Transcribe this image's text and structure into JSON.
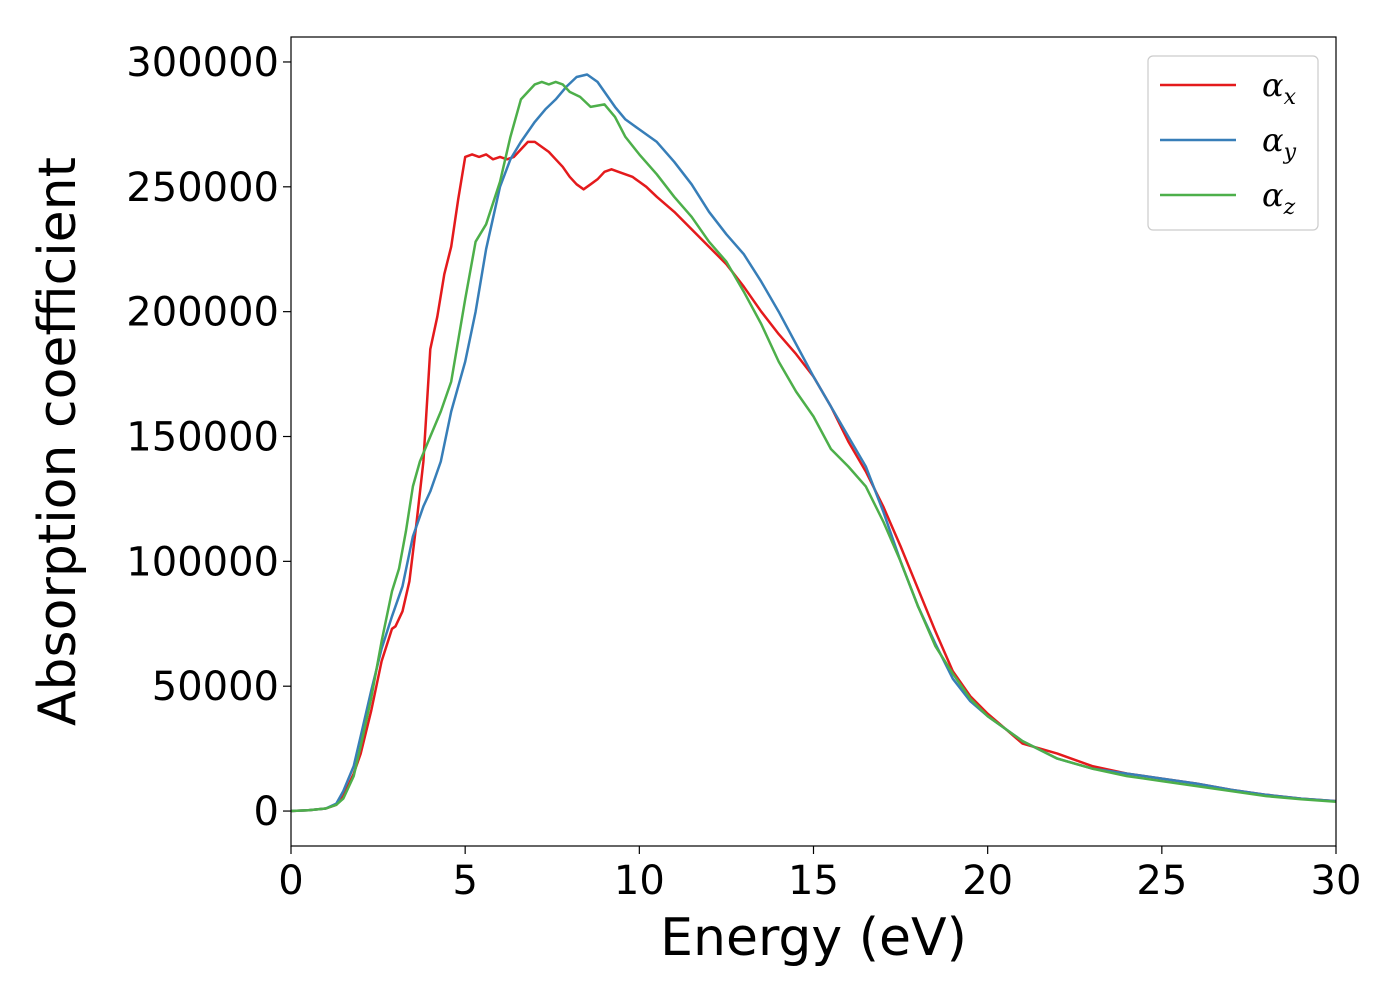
{
  "chart_data": {
    "type": "line",
    "xlabel": "Energy (eV)",
    "ylabel": "Absorption coefficient",
    "xlim": [
      0,
      30
    ],
    "ylim": [
      -14000,
      310000
    ],
    "xticks": [
      0,
      5,
      10,
      15,
      20,
      25,
      30
    ],
    "yticks": [
      0,
      50000,
      100000,
      150000,
      200000,
      250000,
      300000
    ],
    "grid": false,
    "legend_position": "top-right",
    "series": [
      {
        "name": "αx",
        "symbol": "α",
        "subscript": "x",
        "color": "#e41a1c",
        "x": [
          0,
          0.5,
          1.0,
          1.3,
          1.5,
          1.8,
          2.0,
          2.3,
          2.6,
          2.9,
          3.0,
          3.2,
          3.4,
          3.6,
          3.8,
          4.0,
          4.2,
          4.4,
          4.6,
          4.8,
          5.0,
          5.2,
          5.4,
          5.6,
          5.8,
          6.0,
          6.2,
          6.4,
          6.6,
          6.8,
          7.0,
          7.2,
          7.4,
          7.6,
          7.8,
          8.0,
          8.2,
          8.4,
          8.6,
          8.8,
          9.0,
          9.2,
          9.4,
          9.6,
          9.8,
          10.0,
          10.2,
          10.5,
          11.0,
          11.5,
          12.0,
          12.5,
          13.0,
          13.5,
          14.0,
          14.5,
          15.0,
          15.5,
          16.0,
          16.5,
          17.0,
          17.5,
          18.0,
          18.5,
          19.0,
          19.5,
          20.0,
          20.5,
          21.0,
          22.0,
          23.0,
          24.0,
          25.0,
          26.0,
          27.0,
          28.0,
          29.0,
          30.0
        ],
        "values": [
          0,
          300,
          1000,
          2500,
          6000,
          15000,
          23000,
          40000,
          60000,
          73000,
          74000,
          80000,
          92000,
          115000,
          140000,
          185000,
          198000,
          215000,
          226000,
          245000,
          262000,
          263000,
          262000,
          263000,
          261000,
          262000,
          261000,
          262000,
          265000,
          268000,
          268000,
          266000,
          264000,
          261000,
          258000,
          254000,
          251000,
          249000,
          251000,
          253000,
          256000,
          257000,
          256000,
          255000,
          254000,
          252000,
          250000,
          246000,
          240000,
          233000,
          226000,
          219000,
          210000,
          200000,
          191000,
          183000,
          174000,
          162000,
          148000,
          136000,
          122000,
          106000,
          89000,
          72000,
          56000,
          46000,
          39000,
          33000,
          27000,
          23000,
          18000,
          15000,
          13000,
          11000,
          8500,
          6500,
          5000,
          4000
        ]
      },
      {
        "name": "αy",
        "symbol": "α",
        "subscript": "y",
        "color": "#377eb8",
        "x": [
          0,
          0.5,
          1.0,
          1.3,
          1.5,
          1.8,
          2.0,
          2.3,
          2.6,
          2.9,
          3.2,
          3.5,
          3.8,
          4.0,
          4.3,
          4.6,
          5.0,
          5.3,
          5.6,
          6.0,
          6.3,
          6.6,
          7.0,
          7.3,
          7.6,
          7.9,
          8.2,
          8.5,
          8.8,
          9.0,
          9.3,
          9.6,
          10.0,
          10.5,
          11.0,
          11.5,
          12.0,
          12.5,
          13.0,
          13.5,
          14.0,
          14.5,
          15.0,
          15.5,
          16.0,
          16.5,
          17.0,
          17.5,
          18.0,
          18.5,
          19.0,
          19.5,
          20.0,
          20.5,
          21.0,
          22.0,
          23.0,
          24.0,
          25.0,
          26.0,
          27.0,
          28.0,
          29.0,
          30.0
        ],
        "values": [
          0,
          300,
          1000,
          3000,
          8000,
          18000,
          30000,
          48000,
          65000,
          78000,
          90000,
          110000,
          122000,
          128000,
          140000,
          160000,
          180000,
          200000,
          225000,
          250000,
          261000,
          268000,
          276000,
          281000,
          285000,
          290000,
          294000,
          295000,
          292000,
          288000,
          282000,
          277000,
          273000,
          268000,
          260000,
          251000,
          240000,
          231000,
          223000,
          212000,
          200000,
          187000,
          174000,
          162000,
          150000,
          138000,
          120000,
          100000,
          82000,
          67000,
          53000,
          44000,
          38000,
          33000,
          28000,
          21000,
          17000,
          15000,
          13000,
          11000,
          8500,
          6500,
          5000,
          4000
        ]
      },
      {
        "name": "αz",
        "symbol": "α",
        "subscript": "z",
        "color": "#4daf4a",
        "x": [
          0,
          0.5,
          1.0,
          1.3,
          1.5,
          1.8,
          2.0,
          2.3,
          2.6,
          2.9,
          3.1,
          3.3,
          3.5,
          3.7,
          4.0,
          4.3,
          4.6,
          5.0,
          5.3,
          5.6,
          6.0,
          6.3,
          6.6,
          7.0,
          7.2,
          7.4,
          7.6,
          7.8,
          8.0,
          8.3,
          8.6,
          9.0,
          9.3,
          9.6,
          10.0,
          10.5,
          11.0,
          11.5,
          12.0,
          12.5,
          13.0,
          13.5,
          14.0,
          14.5,
          15.0,
          15.5,
          16.0,
          16.5,
          17.0,
          17.5,
          18.0,
          18.5,
          19.0,
          19.5,
          20.0,
          20.5,
          21.0,
          22.0,
          23.0,
          24.0,
          25.0,
          26.0,
          27.0,
          28.0,
          29.0,
          30.0
        ],
        "values": [
          0,
          300,
          1000,
          2500,
          5000,
          14000,
          26000,
          45000,
          68000,
          88000,
          97000,
          112000,
          130000,
          140000,
          150000,
          160000,
          172000,
          205000,
          228000,
          235000,
          252000,
          270000,
          285000,
          291000,
          292000,
          291000,
          292000,
          291000,
          288000,
          286000,
          282000,
          283000,
          278000,
          270000,
          263000,
          255000,
          246000,
          238000,
          228000,
          220000,
          208000,
          195000,
          180000,
          168000,
          158000,
          145000,
          138000,
          130000,
          116000,
          100000,
          82000,
          66000,
          55000,
          45000,
          38000,
          33000,
          28000,
          21000,
          17000,
          14000,
          12000,
          10000,
          8000,
          6000,
          4700,
          3700
        ]
      }
    ]
  }
}
